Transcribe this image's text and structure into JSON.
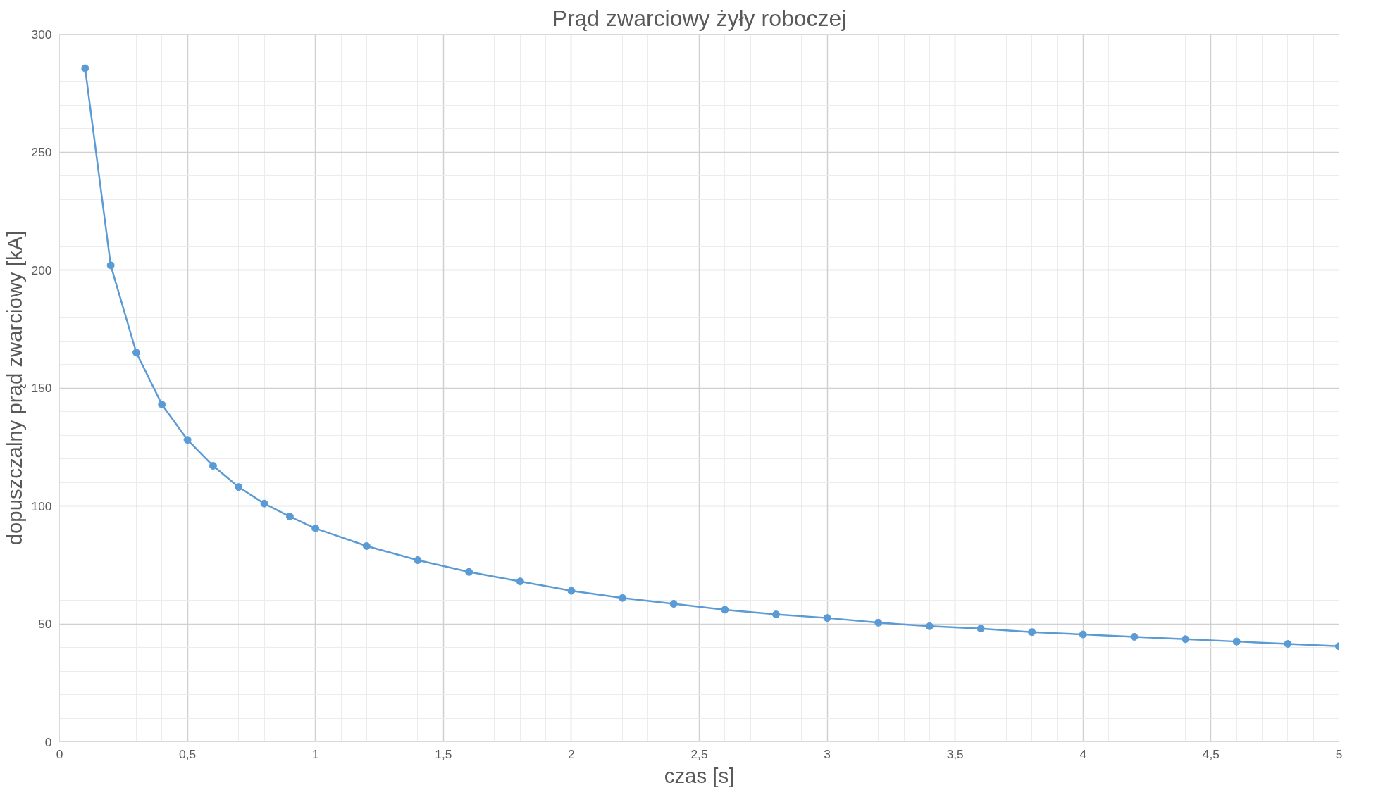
{
  "chart_data": {
    "type": "line",
    "title": "Prąd zwarciowy żyły roboczej",
    "xlabel": "czas [s]",
    "ylabel": "dopuszczalny prąd zwarciowy [kA]",
    "x": [
      0.1,
      0.2,
      0.3,
      0.4,
      0.5,
      0.6,
      0.7,
      0.8,
      0.9,
      1,
      1.2,
      1.4,
      1.6,
      1.8,
      2,
      2.2,
      2.4,
      2.6,
      2.8,
      3,
      3.2,
      3.4,
      3.6,
      3.8,
      4,
      4.2,
      4.4,
      4.6,
      4.8,
      5
    ],
    "series": [
      {
        "color": "#5b9bd5",
        "values": [
          285.5,
          202,
          165,
          143,
          128,
          117,
          108,
          101,
          95.5,
          90.5,
          83,
          77,
          72,
          68,
          64,
          61,
          58.5,
          56,
          54,
          52.5,
          50.5,
          49,
          48,
          46.5,
          45.5,
          44.5,
          43.5,
          42.5,
          41.5,
          40.5
        ]
      }
    ],
    "xlim": [
      0,
      5
    ],
    "ylim": [
      0,
      300
    ],
    "xticks": [
      0,
      {
        "value": 0.5,
        "label": "0,5"
      },
      1,
      {
        "value": 1.5,
        "label": "1,5"
      },
      2,
      {
        "value": 2.5,
        "label": "2,5"
      },
      3,
      {
        "value": 3.5,
        "label": "3,5"
      },
      4,
      {
        "value": 4.5,
        "label": "4,5"
      },
      5
    ],
    "yticks": [
      0,
      50,
      100,
      150,
      200,
      250,
      300
    ],
    "grid": true,
    "marker": "circle",
    "line_style": "solid"
  }
}
